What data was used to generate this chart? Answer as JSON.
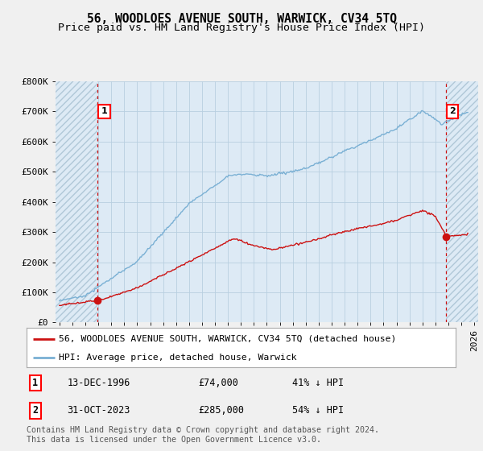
{
  "title": "56, WOODLOES AVENUE SOUTH, WARWICK, CV34 5TQ",
  "subtitle": "Price paid vs. HM Land Registry's House Price Index (HPI)",
  "ylabel_ticks": [
    "£0",
    "£100K",
    "£200K",
    "£300K",
    "£400K",
    "£500K",
    "£600K",
    "£700K",
    "£800K"
  ],
  "ytick_vals": [
    0,
    100000,
    200000,
    300000,
    400000,
    500000,
    600000,
    700000,
    800000
  ],
  "ylim": [
    0,
    800000
  ],
  "xlim_start": 1993.7,
  "xlim_end": 2026.3,
  "point1_x": 1996.95,
  "point1_y": 74000,
  "point2_x": 2023.83,
  "point2_y": 285000,
  "hpi_color": "#7ab0d4",
  "price_color": "#cc1111",
  "background_color": "#f0f0f0",
  "plot_bg_color": "#ddeaf5",
  "grid_color": "#b8cfe0",
  "hatch_color": "#b0c8d8",
  "legend_label1": "56, WOODLOES AVENUE SOUTH, WARWICK, CV34 5TQ (detached house)",
  "legend_label2": "HPI: Average price, detached house, Warwick",
  "note1_label": "1",
  "note1_date": "13-DEC-1996",
  "note1_price": "£74,000",
  "note1_hpi": "41% ↓ HPI",
  "note2_label": "2",
  "note2_date": "31-OCT-2023",
  "note2_price": "£285,000",
  "note2_hpi": "54% ↓ HPI",
  "footer": "Contains HM Land Registry data © Crown copyright and database right 2024.\nThis data is licensed under the Open Government Licence v3.0.",
  "title_fontsize": 10.5,
  "subtitle_fontsize": 9.5,
  "tick_fontsize": 8,
  "label_fontsize": 8.5
}
